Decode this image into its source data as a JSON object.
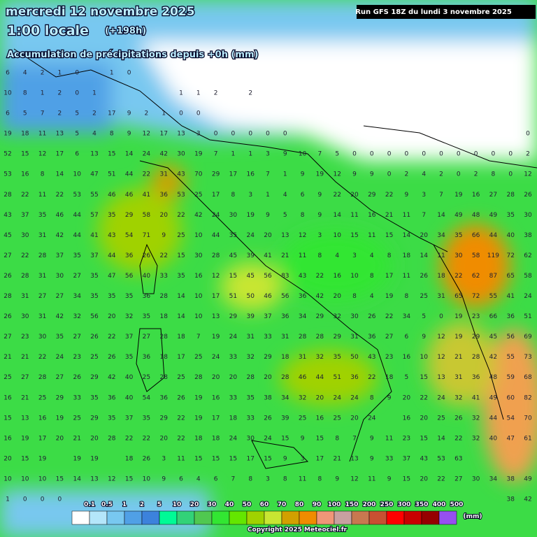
{
  "header": {
    "date": "mercredi 12 novembre 2025",
    "time": "1:00 locale",
    "offset": "(+198h)",
    "subtitle": "Accumulation de précipitations depuis +0h (mm)",
    "run": "Run GFS 18Z du lundi 3 novembre 2025"
  },
  "map": {
    "rows": [
      [
        6,
        4,
        2,
        1,
        0,
        null,
        1,
        0
      ],
      [
        10,
        8,
        1,
        2,
        0,
        1,
        null,
        null,
        null,
        null,
        1,
        1,
        2,
        null,
        2
      ],
      [
        6,
        5,
        7,
        2,
        5,
        2,
        17,
        9,
        2,
        1,
        0,
        0
      ],
      [
        19,
        18,
        11,
        13,
        5,
        4,
        8,
        9,
        12,
        17,
        13,
        3,
        0,
        0,
        0,
        0,
        0,
        null,
        null,
        null,
        null,
        null,
        null,
        null,
        null,
        null,
        null,
        null,
        null,
        null,
        0
      ],
      [
        52,
        15,
        12,
        17,
        6,
        13,
        15,
        14,
        24,
        42,
        30,
        19,
        7,
        1,
        1,
        3,
        9,
        10,
        7,
        5,
        0,
        0,
        0,
        0,
        0,
        0,
        0,
        0,
        0,
        0,
        2
      ],
      [
        53,
        16,
        8,
        14,
        10,
        47,
        51,
        44,
        22,
        31,
        43,
        70,
        29,
        17,
        16,
        7,
        1,
        9,
        19,
        12,
        9,
        9,
        0,
        2,
        4,
        2,
        0,
        2,
        8,
        0,
        12
      ],
      [
        28,
        22,
        11,
        22,
        53,
        55,
        46,
        46,
        41,
        36,
        53,
        25,
        17,
        8,
        3,
        1,
        4,
        6,
        9,
        22,
        20,
        29,
        22,
        9,
        3,
        7,
        19,
        16,
        27,
        28,
        26
      ],
      [
        43,
        37,
        35,
        46,
        44,
        57,
        35,
        29,
        58,
        20,
        22,
        42,
        24,
        30,
        19,
        9,
        5,
        8,
        9,
        14,
        11,
        16,
        21,
        11,
        7,
        14,
        49,
        48,
        49,
        35,
        30
      ],
      [
        45,
        30,
        31,
        42,
        44,
        41,
        43,
        54,
        71,
        9,
        25,
        10,
        44,
        35,
        24,
        20,
        13,
        12,
        3,
        10,
        15,
        11,
        15,
        14,
        20,
        34,
        35,
        66,
        44,
        40,
        38
      ],
      [
        27,
        22,
        28,
        37,
        35,
        37,
        44,
        36,
        26,
        22,
        15,
        30,
        28,
        45,
        39,
        41,
        21,
        11,
        8,
        4,
        3,
        4,
        8,
        18,
        14,
        11,
        30,
        58,
        119,
        72,
        62
      ],
      [
        26,
        28,
        31,
        30,
        27,
        35,
        47,
        56,
        40,
        33,
        35,
        16,
        12,
        15,
        45,
        56,
        83,
        43,
        22,
        16,
        10,
        8,
        17,
        11,
        26,
        18,
        22,
        62,
        87,
        65,
        58
      ],
      [
        28,
        31,
        27,
        27,
        34,
        35,
        35,
        35,
        36,
        28,
        14,
        10,
        17,
        51,
        50,
        46,
        56,
        36,
        42,
        20,
        8,
        4,
        19,
        8,
        25,
        31,
        65,
        72,
        55,
        41,
        24
      ],
      [
        26,
        30,
        31,
        42,
        32,
        56,
        20,
        32,
        35,
        18,
        14,
        10,
        13,
        29,
        39,
        37,
        36,
        34,
        29,
        32,
        30,
        26,
        22,
        34,
        5,
        0,
        19,
        23,
        66,
        36,
        51
      ],
      [
        27,
        23,
        30,
        35,
        27,
        26,
        22,
        37,
        27,
        28,
        18,
        7,
        19,
        24,
        31,
        33,
        31,
        28,
        28,
        29,
        31,
        36,
        27,
        6,
        9,
        12,
        19,
        29,
        45,
        56,
        69
      ],
      [
        21,
        21,
        22,
        24,
        23,
        25,
        26,
        35,
        36,
        18,
        17,
        25,
        24,
        33,
        32,
        29,
        18,
        31,
        32,
        35,
        50,
        43,
        23,
        16,
        10,
        12,
        21,
        28,
        42,
        55,
        73
      ],
      [
        25,
        27,
        28,
        27,
        26,
        29,
        42,
        40,
        25,
        28,
        25,
        28,
        20,
        20,
        28,
        20,
        28,
        46,
        44,
        51,
        36,
        22,
        18,
        5,
        15,
        13,
        31,
        36,
        48,
        59,
        68
      ],
      [
        16,
        21,
        25,
        29,
        33,
        35,
        36,
        40,
        54,
        36,
        26,
        19,
        16,
        33,
        35,
        38,
        34,
        32,
        20,
        24,
        24,
        8,
        9,
        20,
        22,
        24,
        32,
        41,
        49,
        60,
        82
      ],
      [
        15,
        13,
        16,
        19,
        25,
        29,
        35,
        37,
        35,
        29,
        22,
        19,
        17,
        18,
        33,
        26,
        39,
        25,
        16,
        25,
        20,
        24,
        null,
        16,
        20,
        25,
        26,
        32,
        44,
        54,
        70
      ],
      [
        16,
        19,
        17,
        20,
        21,
        20,
        28,
        22,
        22,
        20,
        22,
        18,
        18,
        24,
        30,
        24,
        15,
        9,
        15,
        8,
        7,
        9,
        11,
        23,
        15,
        14,
        22,
        32,
        40,
        47,
        61
      ],
      [
        20,
        15,
        19,
        null,
        19,
        19,
        null,
        18,
        26,
        3,
        11,
        15,
        15,
        15,
        17,
        15,
        9,
        3,
        17,
        21,
        13,
        9,
        33,
        37,
        43,
        53,
        63
      ],
      [
        10,
        10,
        10,
        15,
        14,
        13,
        12,
        15,
        10,
        9,
        6,
        4,
        6,
        7,
        8,
        3,
        8,
        11,
        8,
        9,
        12,
        11,
        9,
        15,
        20,
        22,
        27,
        30,
        34,
        38,
        49
      ],
      [
        1,
        0,
        0,
        0,
        null,
        null,
        null,
        null,
        null,
        null,
        null,
        null,
        null,
        null,
        null,
        null,
        null,
        null,
        null,
        null,
        null,
        null,
        null,
        null,
        null,
        null,
        null,
        null,
        null,
        38,
        42
      ]
    ]
  },
  "legend": {
    "values": [
      0.1,
      0.5,
      1,
      2,
      5,
      10,
      20,
      30,
      40,
      50,
      60,
      70,
      80,
      90,
      100,
      150,
      200,
      250,
      300,
      350,
      400,
      500
    ],
    "colors": [
      "#ffffff",
      "#b4e6fa",
      "#78c8f0",
      "#50a0e6",
      "#3c82dc",
      "#00fa96",
      "#32d278",
      "#50c850",
      "#32e632",
      "#64e600",
      "#a0d200",
      "#c8e632",
      "#d2a000",
      "#f08c00",
      "#f09678",
      "#c8a0a0",
      "#c87850",
      "#c85032",
      "#ff0000",
      "#c80000",
      "#960000",
      "#9650f0"
    ],
    "unit": "(mm)"
  },
  "footer": {
    "copyright": "Copyright 2025 Meteociel.fr"
  }
}
